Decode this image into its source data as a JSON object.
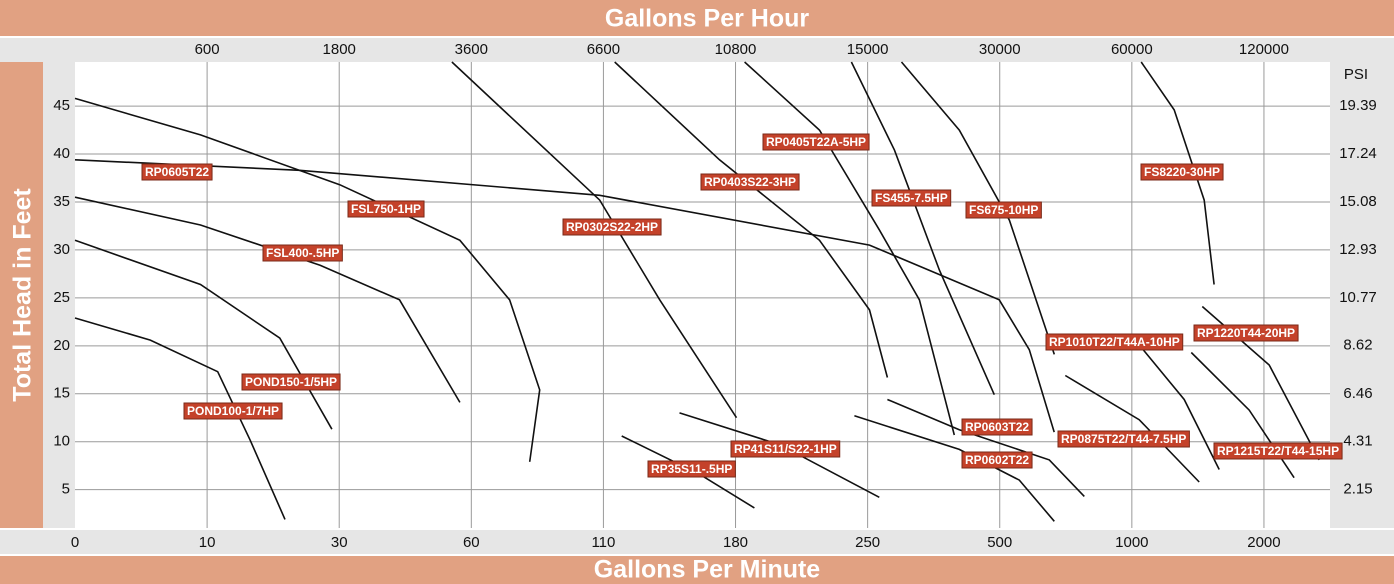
{
  "chart_data": {
    "type": "line",
    "xlabel": "Gallons Per Minute",
    "x2label": "Gallons Per Hour",
    "ylabel": "Total Head in Feet",
    "y2label": "PSI",
    "xscale": "piecewise",
    "xlim": [
      0,
      2500
    ],
    "xticks": [
      0,
      10,
      30,
      60,
      110,
      180,
      250,
      500,
      1000,
      2000
    ],
    "x2lim": [
      0,
      150000
    ],
    "x2ticks": [
      600,
      1800,
      3600,
      6600,
      10800,
      15000,
      30000,
      60000,
      120000
    ],
    "ylim": [
      1,
      49.6
    ],
    "yticks": [
      5,
      10,
      15,
      20,
      25,
      30,
      35,
      40,
      45
    ],
    "y2lim": [
      0.43,
      21.37
    ],
    "y2ticks": [
      2.15,
      4.31,
      6.46,
      8.62,
      10.77,
      12.93,
      15.08,
      17.24,
      19.39
    ],
    "grid": true,
    "line_color": "#111111",
    "label_color": "#c4422a",
    "band_color": "#e1a182",
    "strip_color": "#e6e6e6",
    "series": [
      {
        "name": "RP0605T22",
        "x": [
          0,
          24.0,
          108.6,
          253.5,
          499,
          612,
          706
        ],
        "values": [
          39.4,
          38.3,
          35.7,
          30.5,
          24.8,
          19.6,
          11.0
        ]
      },
      {
        "name": "FSL750-1HP",
        "x": [
          0,
          9.5,
          30.1,
          57.4,
          74.5,
          85.9,
          82.1
        ],
        "values": [
          45.8,
          42.0,
          36.8,
          31.0,
          24.8,
          15.4,
          7.9
        ]
      },
      {
        "name": "FSL400-.5HP",
        "x": [
          0,
          9.5,
          27.1,
          43.7,
          57.4
        ],
        "values": [
          35.5,
          32.6,
          28.4,
          24.8,
          14.1
        ]
      },
      {
        "name": "POND150-1/5HP",
        "x": [
          0,
          9.5,
          21,
          28.9
        ],
        "values": [
          31.0,
          26.4,
          20.8,
          11.3
        ]
      },
      {
        "name": "POND100-1/7HP",
        "x": [
          0,
          5.7,
          11.6,
          16.5,
          21.8
        ],
        "values": [
          22.9,
          20.6,
          17.3,
          10.2,
          1.9
        ]
      },
      {
        "name": "RP0302S22-2HP",
        "x": [
          55.6,
          108.6,
          139.8,
          180.5
        ],
        "values": [
          49.6,
          35.2,
          24.8,
          12.5
        ]
      },
      {
        "name": "RP0403S22-3HP",
        "x": [
          116,
          171.5,
          224.5,
          253.5,
          287.5
        ],
        "values": [
          49.6,
          39.4,
          31.0,
          23.75,
          16.7
        ]
      },
      {
        "name": "RP0405T22A-5HP",
        "x": [
          184.8,
          224.5,
          272,
          348,
          414
        ],
        "values": [
          49.6,
          42.5,
          32.1,
          24.8,
          10.7
        ]
      },
      {
        "name": "FS455-7.5HP",
        "x": [
          241.4,
          300.8,
          385.8,
          489.8
        ],
        "values": [
          49.6,
          40.4,
          27.9,
          14.9
        ]
      },
      {
        "name": "FS675-10HP",
        "x": [
          314,
          423.5,
          536.5,
          706.5
        ],
        "values": [
          49.6,
          42.5,
          33.1,
          19.1
        ]
      },
      {
        "name": "FS8220-30HP",
        "x": [
          1071,
          1321,
          1548,
          1623
        ],
        "values": [
          49.6,
          44.6,
          35.2,
          26.4
        ]
      },
      {
        "name": "RP1220T44-20HP",
        "x": [
          1533,
          2040,
          2418
        ],
        "values": [
          24.1,
          18.0,
          8.1
        ]
      },
      {
        "name": "RP1010T22/T44A-10HP",
        "x": [
          1056,
          1396,
          1661
        ],
        "values": [
          20.1,
          14.4,
          7.1
        ]
      },
      {
        "name": "RP0875T22/T44-7.5HP",
        "x": [
          748,
          1056,
          1510
        ],
        "values": [
          16.9,
          12.3,
          5.8
        ]
      },
      {
        "name": "RP1215T22/T44-15HP",
        "x": [
          1450,
          1888,
          2228
        ],
        "values": [
          19.3,
          13.3,
          6.25
        ]
      },
      {
        "name": "RP0603T22",
        "x": [
          287.5,
          423.5,
          687.5,
          820
        ],
        "values": [
          14.4,
          11.25,
          8.1,
          4.3
        ]
      },
      {
        "name": "RP0602T22",
        "x": [
          243,
          423.5,
          574,
          706.5
        ],
        "values": [
          12.7,
          9.2,
          6.0,
          1.7
        ]
      },
      {
        "name": "RP41S11/S22-1HP",
        "x": [
          150.3,
          203.3,
          272
        ],
        "values": [
          13.0,
          9.7,
          4.2
        ]
      },
      {
        "name": "RP35S11-.5HP",
        "x": [
          119.7,
          161,
          190
        ],
        "values": [
          10.6,
          6.6,
          3.1
        ]
      }
    ]
  }
}
